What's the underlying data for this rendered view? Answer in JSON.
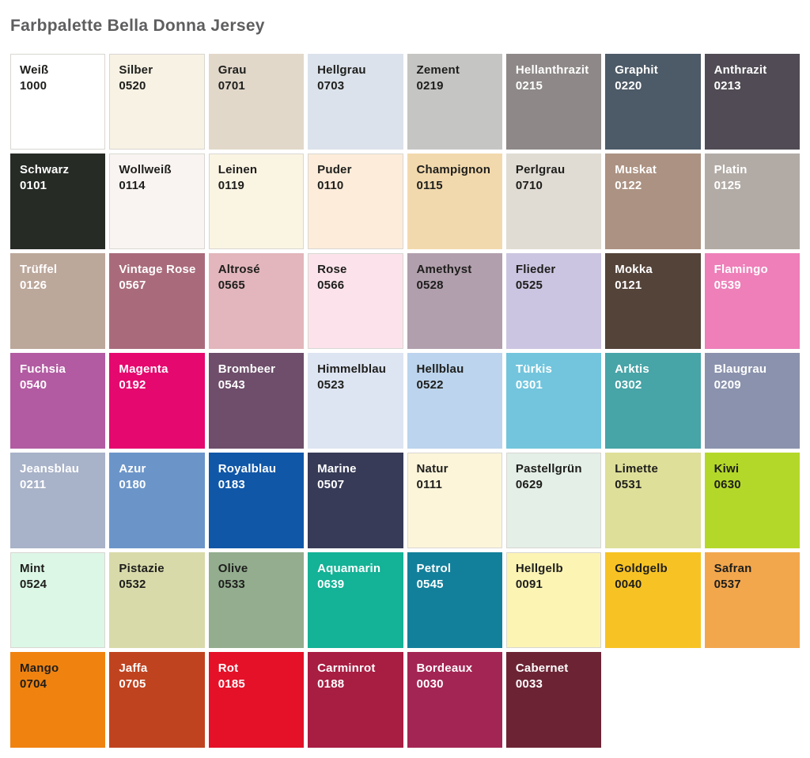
{
  "title": "Farbpalette Bella Donna Jersey",
  "text_colors": {
    "dark": "#1e1e1c",
    "light": "#ffffff"
  },
  "grid": {
    "columns": 8,
    "rows": 7
  },
  "swatches": [
    {
      "name": "Weiß",
      "code": "1000",
      "color": "#ffffff",
      "text": "dark",
      "border": true
    },
    {
      "name": "Silber",
      "code": "0520",
      "color": "#f7f2e3",
      "text": "dark",
      "border": true
    },
    {
      "name": "Grau",
      "code": "0701",
      "color": "#e1d8ca",
      "text": "dark",
      "border": false
    },
    {
      "name": "Hellgrau",
      "code": "0703",
      "color": "#dbe2eb",
      "text": "dark",
      "border": false
    },
    {
      "name": "Zement",
      "code": "0219",
      "color": "#c5c6c4",
      "text": "dark",
      "border": false
    },
    {
      "name": "Hellanthrazit",
      "code": "0215",
      "color": "#8e8888",
      "text": "light",
      "border": false
    },
    {
      "name": "Graphit",
      "code": "0220",
      "color": "#4d5a67",
      "text": "light",
      "border": false
    },
    {
      "name": "Anthrazit",
      "code": "0213",
      "color": "#504b54",
      "text": "light",
      "border": false
    },
    {
      "name": "Schwarz",
      "code": "0101",
      "color": "#262b26",
      "text": "light",
      "border": false
    },
    {
      "name": "Wollweiß",
      "code": "0114",
      "color": "#f9f4f1",
      "text": "dark",
      "border": true
    },
    {
      "name": "Leinen",
      "code": "0119",
      "color": "#faf4e3",
      "text": "dark",
      "border": true
    },
    {
      "name": "Puder",
      "code": "0110",
      "color": "#fcecd9",
      "text": "dark",
      "border": true
    },
    {
      "name": "Champignon",
      "code": "0115",
      "color": "#f2d9ad",
      "text": "dark",
      "border": false
    },
    {
      "name": "Perlgrau",
      "code": "0710",
      "color": "#e0dcd3",
      "text": "dark",
      "border": false
    },
    {
      "name": "Muskat",
      "code": "0122",
      "color": "#ac9282",
      "text": "light",
      "border": false
    },
    {
      "name": "Platin",
      "code": "0125",
      "color": "#b2aba5",
      "text": "light",
      "border": false
    },
    {
      "name": "Trüffel",
      "code": "0126",
      "color": "#bca79b",
      "text": "light",
      "border": false
    },
    {
      "name": "Vintage Rose",
      "code": "0567",
      "color": "#a96b7b",
      "text": "light",
      "border": false
    },
    {
      "name": "Altrosé",
      "code": "0565",
      "color": "#e2b6bc",
      "text": "dark",
      "border": false
    },
    {
      "name": "Rose",
      "code": "0566",
      "color": "#fce3eb",
      "text": "dark",
      "border": true
    },
    {
      "name": "Amethyst",
      "code": "0528",
      "color": "#b19fad",
      "text": "dark",
      "border": false
    },
    {
      "name": "Flieder",
      "code": "0525",
      "color": "#ccc5e1",
      "text": "dark",
      "border": false
    },
    {
      "name": "Mokka",
      "code": "0121",
      "color": "#544339",
      "text": "light",
      "border": false
    },
    {
      "name": "Flamingo",
      "code": "0539",
      "color": "#ee7fb9",
      "text": "light",
      "border": false
    },
    {
      "name": "Fuchsia",
      "code": "0540",
      "color": "#b25ba2",
      "text": "light",
      "border": false
    },
    {
      "name": "Magenta",
      "code": "0192",
      "color": "#e5086e",
      "text": "light",
      "border": false
    },
    {
      "name": "Brombeer",
      "code": "0543",
      "color": "#6e4e6b",
      "text": "light",
      "border": false
    },
    {
      "name": "Himmelblau",
      "code": "0523",
      "color": "#dde4f2",
      "text": "dark",
      "border": false
    },
    {
      "name": "Hellblau",
      "code": "0522",
      "color": "#bcd4ed",
      "text": "dark",
      "border": false
    },
    {
      "name": "Türkis",
      "code": "0301",
      "color": "#72c5dd",
      "text": "light",
      "border": false
    },
    {
      "name": "Arktis",
      "code": "0302",
      "color": "#47a4a7",
      "text": "light",
      "border": false
    },
    {
      "name": "Blaugrau",
      "code": "0209",
      "color": "#8a92ad",
      "text": "light",
      "border": false
    },
    {
      "name": "Jeansblau",
      "code": "0211",
      "color": "#a8b2c8",
      "text": "light",
      "border": false
    },
    {
      "name": "Azur",
      "code": "0180",
      "color": "#6b95c9",
      "text": "light",
      "border": false
    },
    {
      "name": "Royalblau",
      "code": "0183",
      "color": "#1057a8",
      "text": "light",
      "border": false
    },
    {
      "name": "Marine",
      "code": "0507",
      "color": "#373b57",
      "text": "light",
      "border": false
    },
    {
      "name": "Natur",
      "code": "0111",
      "color": "#fcf5da",
      "text": "dark",
      "border": true
    },
    {
      "name": "Pastellgrün",
      "code": "0629",
      "color": "#e3efe7",
      "text": "dark",
      "border": true
    },
    {
      "name": "Limette",
      "code": "0531",
      "color": "#dedf99",
      "text": "dark",
      "border": false
    },
    {
      "name": "Kiwi",
      "code": "0630",
      "color": "#b4d829",
      "text": "dark",
      "border": false
    },
    {
      "name": "Mint",
      "code": "0524",
      "color": "#dcf7e5",
      "text": "dark",
      "border": true
    },
    {
      "name": "Pistazie",
      "code": "0532",
      "color": "#d8daaa",
      "text": "dark",
      "border": false
    },
    {
      "name": "Olive",
      "code": "0533",
      "color": "#93ad8e",
      "text": "dark",
      "border": false
    },
    {
      "name": "Aquamarin",
      "code": "0639",
      "color": "#14b296",
      "text": "light",
      "border": false
    },
    {
      "name": "Petrol",
      "code": "0545",
      "color": "#13809b",
      "text": "light",
      "border": false
    },
    {
      "name": "Hellgelb",
      "code": "0091",
      "color": "#fcf4b3",
      "text": "dark",
      "border": true
    },
    {
      "name": "Goldgelb",
      "code": "0040",
      "color": "#f7c324",
      "text": "dark",
      "border": false
    },
    {
      "name": "Safran",
      "code": "0537",
      "color": "#f2a74d",
      "text": "dark",
      "border": false
    },
    {
      "name": "Mango",
      "code": "0704",
      "color": "#f08310",
      "text": "dark",
      "border": false
    },
    {
      "name": "Jaffa",
      "code": "0705",
      "color": "#c0431f",
      "text": "light",
      "border": false
    },
    {
      "name": "Rot",
      "code": "0185",
      "color": "#e41128",
      "text": "light",
      "border": false
    },
    {
      "name": "Carminrot",
      "code": "0188",
      "color": "#a81d42",
      "text": "light",
      "border": false
    },
    {
      "name": "Bordeaux",
      "code": "0030",
      "color": "#a32553",
      "text": "light",
      "border": false
    },
    {
      "name": "Cabernet",
      "code": "0033",
      "color": "#6c2434",
      "text": "light",
      "border": false
    }
  ]
}
